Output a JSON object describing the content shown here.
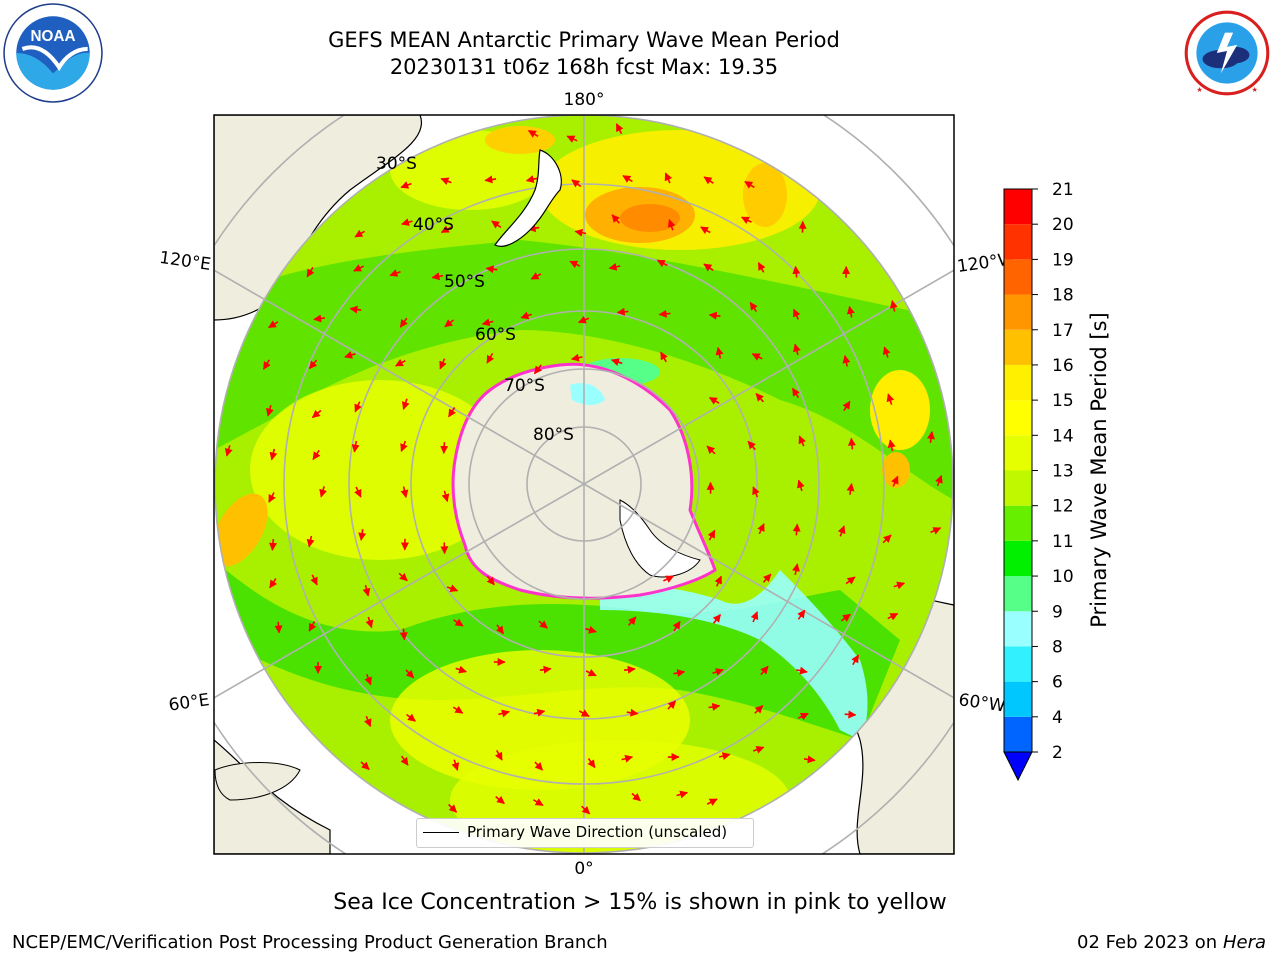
{
  "header": {
    "title_line1": "GEFS MEAN Antarctic Primary Wave Mean Period",
    "title_line2": "20230131 t06z 168h fcst   Max: 19.35"
  },
  "logos": {
    "left": {
      "name": "noaa-logo",
      "text": "NOAA",
      "ring_text": "NATIONAL OCEANIC AND ATMOSPHERIC ADMINISTRATION · U.S. DEPARTMENT OF COMMERCE"
    },
    "right": {
      "name": "nws-logo",
      "ring_text": "NATIONAL WEATHER SERVICE"
    }
  },
  "map": {
    "projection": "south-polar-stereographic",
    "lon_labels": {
      "top": "180°",
      "bottom": "0°",
      "left_upper": "120°E",
      "left_lower": "60°E",
      "right_upper": "120°W",
      "right_lower": "60°W"
    },
    "lat_labels": [
      "30°S",
      "40°S",
      "50°S",
      "60°S",
      "70°S",
      "80°S"
    ],
    "legend_label": "Primary Wave Direction (unscaled)",
    "ocean_color": "#a8f000",
    "land_color": "#efedde",
    "ice_edge_color": "#ff33cc",
    "arrow_color": "#ff0000"
  },
  "colorbar": {
    "label": "Primary Wave Mean Period [s]",
    "ticks": [
      "2",
      "4",
      "6",
      "8",
      "9",
      "10",
      "11",
      "12",
      "13",
      "14",
      "15",
      "16",
      "17",
      "18",
      "19",
      "20",
      "21"
    ],
    "colors": [
      "#0064ff",
      "#00c8ff",
      "#33f0ff",
      "#99ffff",
      "#55ff88",
      "#00f000",
      "#66f000",
      "#c0f800",
      "#e6ff00",
      "#ffff00",
      "#fff000",
      "#ffc000",
      "#ff9600",
      "#ff6400",
      "#ff3200",
      "#ff0000"
    ],
    "extend_color": "#0000ff"
  },
  "footer": {
    "sea_ice_note": "Sea Ice Concentration > 15% is shown in pink to yellow",
    "credit": "NCEP/EMC/Verification Post Processing Product Generation Branch",
    "date": "02 Feb 2023 on",
    "host": "Hera"
  }
}
